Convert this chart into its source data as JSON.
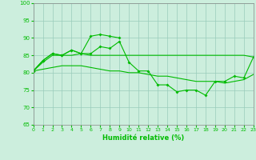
{
  "line1_x": [
    0,
    1,
    2,
    3,
    4,
    5,
    6,
    7,
    8,
    9
  ],
  "line1_y": [
    80.5,
    83.5,
    85.5,
    85.0,
    86.5,
    85.5,
    90.5,
    91.0,
    90.5,
    90.0
  ],
  "line2_x": [
    0,
    1,
    2,
    3,
    4,
    5,
    6,
    7,
    8,
    9,
    10,
    11,
    12,
    13,
    14,
    15,
    16,
    17,
    18,
    19,
    20,
    21,
    22,
    23
  ],
  "line2_y": [
    80.5,
    83.5,
    85.5,
    85.0,
    86.5,
    85.5,
    85.5,
    87.5,
    87.0,
    89.0,
    83.0,
    80.5,
    80.5,
    76.5,
    76.5,
    74.5,
    75.0,
    75.0,
    73.5,
    77.5,
    77.5,
    79.0,
    78.5,
    84.5
  ],
  "line3_x": [
    0,
    1,
    2,
    3,
    4,
    5,
    6,
    7,
    8,
    9,
    10,
    11,
    12,
    13,
    14,
    15,
    16,
    17,
    18,
    19,
    20,
    21,
    22,
    23
  ],
  "line3_y": [
    80.5,
    83.0,
    85.0,
    85.0,
    85.0,
    85.5,
    85.0,
    85.0,
    85.0,
    85.0,
    85.0,
    85.0,
    85.0,
    85.0,
    85.0,
    85.0,
    85.0,
    85.0,
    85.0,
    85.0,
    85.0,
    85.0,
    85.0,
    84.5
  ],
  "line4_x": [
    0,
    1,
    2,
    3,
    4,
    5,
    6,
    7,
    8,
    9,
    10,
    11,
    12,
    13,
    14,
    15,
    16,
    17,
    18,
    19,
    20,
    21,
    22,
    23
  ],
  "line4_y": [
    80.5,
    81.0,
    81.5,
    82.0,
    82.0,
    82.0,
    81.5,
    81.0,
    80.5,
    80.5,
    80.0,
    80.0,
    79.5,
    79.0,
    79.0,
    78.5,
    78.0,
    77.5,
    77.5,
    77.5,
    77.0,
    77.5,
    78.0,
    79.5
  ],
  "color": "#00bb00",
  "bg_color": "#cceedd",
  "grid_color": "#99ccbb",
  "xlabel": "Humidité relative (%)",
  "ylim": [
    65,
    100
  ],
  "xlim": [
    0,
    23
  ],
  "yticks": [
    65,
    70,
    75,
    80,
    85,
    90,
    95,
    100
  ],
  "xticks": [
    0,
    1,
    2,
    3,
    4,
    5,
    6,
    7,
    8,
    9,
    10,
    11,
    12,
    13,
    14,
    15,
    16,
    17,
    18,
    19,
    20,
    21,
    22,
    23
  ]
}
